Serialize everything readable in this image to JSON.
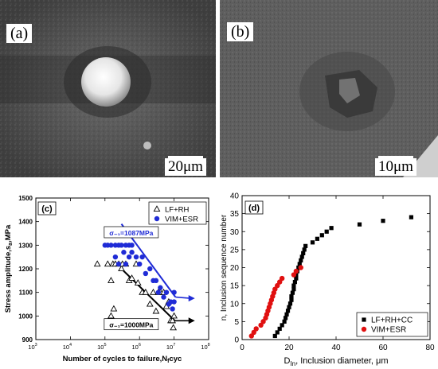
{
  "panels": {
    "a": {
      "label": "(a)",
      "scale": "20μm"
    },
    "b": {
      "label": "(b)",
      "scale": "10μm"
    }
  },
  "chart_data": [
    {
      "panel_label": "(c)",
      "type": "scatter",
      "xscale": "log",
      "xlim": [
        1000,
        100000000
      ],
      "ylim": [
        900,
        1500
      ],
      "xlabel": "Number of cycles to failure,N",
      "xlabel_sub": "f",
      "xlabel_suffix": "cyc",
      "ylabel": "Stress amplitude,s",
      "ylabel_sub": "a",
      "ylabel_suffix": ",MPa",
      "yticks": [
        "900",
        "1000",
        "1100",
        "1200",
        "1300",
        "1400",
        "1500"
      ],
      "xtick_exponents": [
        "3",
        "4",
        "5",
        "6",
        "7",
        "8"
      ],
      "xtick_base": "10",
      "legend": {
        "position": "top-right"
      },
      "series": [
        {
          "name": "LF+RH",
          "marker": "open-triangle",
          "color": "#000000",
          "points": [
            [
              60000,
              1220
            ],
            [
              120000,
              1220
            ],
            [
              150000,
              1150
            ],
            [
              170000,
              1220
            ],
            [
              200000,
              1220
            ],
            [
              250000,
              1220
            ],
            [
              300000,
              1200
            ],
            [
              320000,
              1220
            ],
            [
              400000,
              1220
            ],
            [
              500000,
              1150
            ],
            [
              800000,
              1220
            ],
            [
              900000,
              1140
            ],
            [
              180000,
              1030
            ],
            [
              150000,
              1000
            ],
            [
              600000,
              1160
            ],
            [
              1200000,
              1100
            ],
            [
              1500000,
              1100
            ],
            [
              2000000,
              1050
            ],
            [
              2500000,
              1100
            ],
            [
              3000000,
              1020
            ],
            [
              3500000,
              1100
            ],
            [
              4000000,
              1100
            ],
            [
              5000000,
              1100
            ],
            [
              6000000,
              1040
            ],
            [
              7000000,
              1060
            ],
            [
              8000000,
              980
            ],
            [
              9000000,
              980
            ],
            [
              9500000,
              950
            ],
            [
              10000000,
              1000
            ]
          ]
        },
        {
          "name": "VIM+ESR",
          "marker": "filled-circle",
          "color": "#1f2bd6",
          "points": [
            [
              100000,
              1300
            ],
            [
              120000,
              1300
            ],
            [
              150000,
              1300
            ],
            [
              200000,
              1300
            ],
            [
              250000,
              1300
            ],
            [
              300000,
              1300
            ],
            [
              400000,
              1300
            ],
            [
              500000,
              1300
            ],
            [
              600000,
              1300
            ],
            [
              350000,
              1270
            ],
            [
              200000,
              1250
            ],
            [
              250000,
              1220
            ],
            [
              400000,
              1220
            ],
            [
              500000,
              1250
            ],
            [
              600000,
              1270
            ],
            [
              800000,
              1250
            ],
            [
              1000000,
              1220
            ],
            [
              1200000,
              1250
            ],
            [
              1500000,
              1180
            ],
            [
              2000000,
              1200
            ],
            [
              2500000,
              1150
            ],
            [
              3000000,
              1150
            ],
            [
              3500000,
              1100
            ],
            [
              4000000,
              1120
            ],
            [
              5000000,
              1080
            ],
            [
              6000000,
              1100
            ],
            [
              7000000,
              1050
            ],
            [
              8000000,
              1060
            ],
            [
              9000000,
              1030
            ],
            [
              10000000,
              1060
            ],
            [
              10000000,
              1100
            ]
          ]
        }
      ],
      "annotations": [
        {
          "text": "σ₋₁=1087MPa",
          "color": "#1f2bd6",
          "x": 95000,
          "y": 1345,
          "box": true
        },
        {
          "text": "σ₋₁=1000MPa",
          "color": "#000000",
          "x": 95000,
          "y": 955,
          "box": true
        }
      ],
      "trend_lines": [
        {
          "color": "#1f2bd6",
          "from": [
            300000,
            1390
          ],
          "to": [
            11000000,
            1080
          ],
          "extend_to": [
            40000000,
            1075
          ]
        },
        {
          "color": "#000000",
          "from": [
            300000,
            1200
          ],
          "to": [
            10500000,
            980
          ],
          "extend_to": [
            40000000,
            980
          ]
        }
      ]
    },
    {
      "panel_label": "(d)",
      "type": "scatter",
      "xlim": [
        0,
        80
      ],
      "ylim": [
        0,
        40
      ],
      "xlabel": "D",
      "xlabel_sub": "In",
      "xlabel_suffix": ", Inclusion diameter, μm",
      "ylabel": "n, Inclusion sequence number",
      "xticks": [
        "0",
        "20",
        "40",
        "60",
        "80"
      ],
      "yticks": [
        "0",
        "5",
        "10",
        "15",
        "20",
        "25",
        "30",
        "35",
        "40"
      ],
      "legend": {
        "position": "bottom-right"
      },
      "series": [
        {
          "name": "LF+RH+CC",
          "marker": "filled-square",
          "color": "#000000",
          "points": [
            [
              14,
              1
            ],
            [
              15,
              2
            ],
            [
              16,
              3
            ],
            [
              17,
              4
            ],
            [
              18,
              5
            ],
            [
              18.5,
              6
            ],
            [
              19,
              7
            ],
            [
              19.5,
              8
            ],
            [
              20,
              9
            ],
            [
              20.5,
              10
            ],
            [
              21,
              11
            ],
            [
              21,
              12
            ],
            [
              21.5,
              13
            ],
            [
              22,
              14
            ],
            [
              22,
              15
            ],
            [
              22.5,
              16
            ],
            [
              23,
              17
            ],
            [
              23,
              18
            ],
            [
              23.5,
              19
            ],
            [
              24,
              20
            ],
            [
              24.5,
              21
            ],
            [
              25,
              22
            ],
            [
              25.5,
              23
            ],
            [
              26,
              24
            ],
            [
              26.5,
              25
            ],
            [
              27,
              26
            ],
            [
              30,
              27
            ],
            [
              32,
              28
            ],
            [
              34,
              29
            ],
            [
              36,
              30
            ],
            [
              38,
              31
            ],
            [
              50,
              32
            ],
            [
              60,
              33
            ],
            [
              72,
              34
            ]
          ]
        },
        {
          "name": "VIM+ESR",
          "marker": "filled-circle",
          "color": "#e01010",
          "points": [
            [
              4,
              1
            ],
            [
              5,
              2
            ],
            [
              6,
              3
            ],
            [
              8,
              4
            ],
            [
              9,
              5
            ],
            [
              10,
              6
            ],
            [
              10.5,
              7
            ],
            [
              11,
              8
            ],
            [
              11.5,
              9
            ],
            [
              12,
              10
            ],
            [
              12.5,
              11
            ],
            [
              13,
              12
            ],
            [
              13.5,
              13
            ],
            [
              14,
              14
            ],
            [
              15,
              15
            ],
            [
              16,
              16
            ],
            [
              17,
              17
            ],
            [
              22,
              18
            ],
            [
              23,
              19
            ],
            [
              25,
              20
            ]
          ]
        }
      ]
    }
  ]
}
